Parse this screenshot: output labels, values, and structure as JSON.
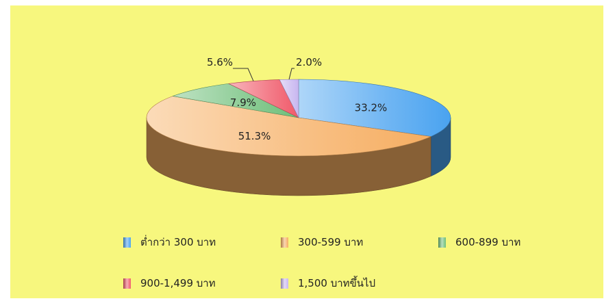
{
  "chart_data": {
    "type": "pie",
    "title": "",
    "slices": [
      {
        "label": "ต่ำกว่า 300 บาท",
        "value": 33.2,
        "display": "33.2%",
        "color": "#4aa3f0"
      },
      {
        "label": "300-599 บาท",
        "value": 51.3,
        "display": "51.3%",
        "color": "#f6ae62"
      },
      {
        "label": "600-899 บาท",
        "value": 7.9,
        "display": "7.9%",
        "color": "#6fbf7a"
      },
      {
        "label": "900-1,499 บาท",
        "value": 5.6,
        "display": "5.6%",
        "color": "#f05a6a"
      },
      {
        "label": "1,500 บาทขึ้นไป",
        "value": 2.0,
        "display": "2.0%",
        "color": "#c8b6f0"
      }
    ],
    "legend_position": "bottom",
    "style": "3d-pie"
  }
}
